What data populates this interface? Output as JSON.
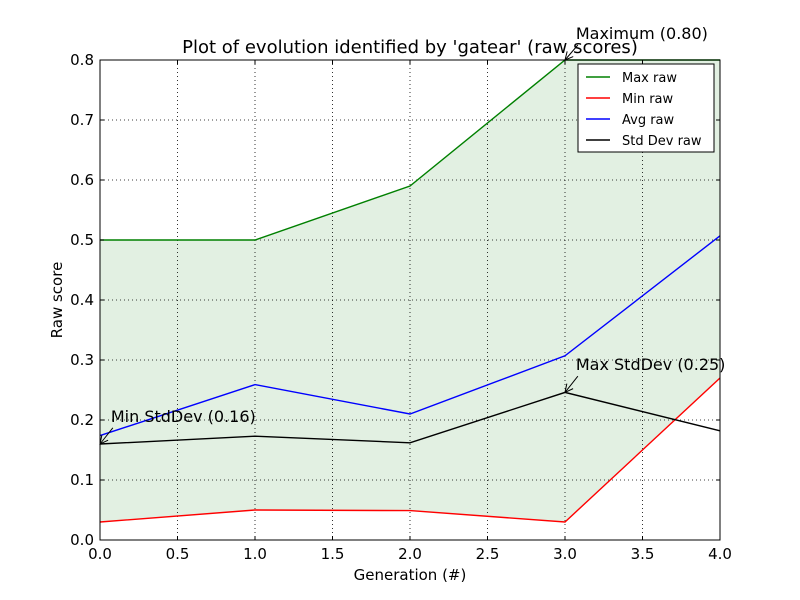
{
  "chart_data": {
    "type": "line",
    "title": "Plot of evolution identified by 'gatear' (raw scores)",
    "xlabel": "Generation (#)",
    "ylabel": "Raw score",
    "xlim": [
      0,
      4
    ],
    "ylim": [
      0,
      0.8
    ],
    "grid": true,
    "legend_position": "top-right",
    "x": [
      0,
      1,
      2,
      3,
      4
    ],
    "xticks": [
      "0.0",
      "0.5",
      "1.0",
      "1.5",
      "2.0",
      "2.5",
      "3.0",
      "3.5",
      "4.0"
    ],
    "yticks": [
      "0.0",
      "0.1",
      "0.2",
      "0.3",
      "0.4",
      "0.5",
      "0.6",
      "0.7",
      "0.8"
    ],
    "series": [
      {
        "name": "Max raw",
        "color": "#008000",
        "values": [
          0.5,
          0.5,
          0.59,
          0.8,
          0.8
        ]
      },
      {
        "name": "Min raw",
        "color": "#ff0000",
        "values": [
          0.03,
          0.05,
          0.049,
          0.03,
          0.27
        ]
      },
      {
        "name": "Avg raw",
        "color": "#0000ff",
        "values": [
          0.174,
          0.259,
          0.21,
          0.307,
          0.507
        ]
      },
      {
        "name": "Std Dev raw",
        "color": "#000000",
        "values": [
          0.16,
          0.173,
          0.162,
          0.246,
          0.182
        ]
      }
    ],
    "fill_between": {
      "lower": "Min raw",
      "upper": "Max raw",
      "color": "#e2f0e2"
    },
    "annotations": [
      {
        "text": "Maximum (0.80)",
        "x": 3,
        "y": 0.8,
        "text_x": 3.07,
        "text_y": 0.835
      },
      {
        "text": "Max StdDev (0.25)",
        "x": 3,
        "y": 0.246,
        "text_x": 3.07,
        "text_y": 0.283
      },
      {
        "text": "Min StdDev (0.16)",
        "x": 0,
        "y": 0.16,
        "text_x": 0.07,
        "text_y": 0.197
      }
    ]
  }
}
